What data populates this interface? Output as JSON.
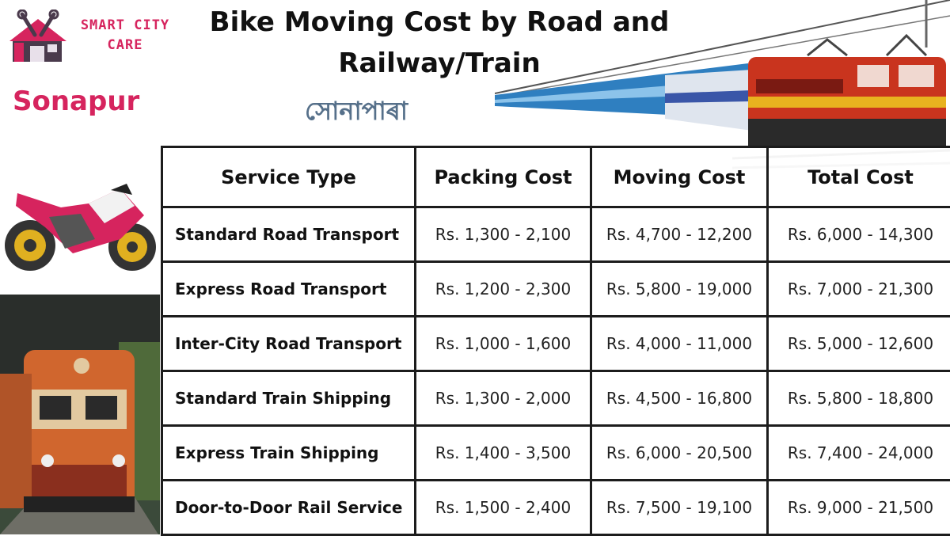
{
  "logo": {
    "line1": "SMART CITY",
    "line2": "CARE"
  },
  "title": {
    "line1": "Bike Moving Cost by Road and",
    "line2": "Railway/Train"
  },
  "location": {
    "english": "Sonapur",
    "assamese": "সোনাপাৰা"
  },
  "colors": {
    "brand": "#d6245e",
    "assamese_text": "#56708a",
    "border": "#1c1c1c"
  },
  "icons": [
    "house-tools-logo-icon",
    "motorcycle-icon",
    "electric-train-icon",
    "diesel-locomotive-icon"
  ],
  "table": {
    "headers": [
      "Service Type",
      "Packing Cost",
      "Moving Cost",
      "Total Cost"
    ],
    "rows": [
      [
        "Standard Road Transport",
        "Rs. 1,300 - 2,100",
        "Rs. 4,700 - 12,200",
        "Rs. 6,000 - 14,300"
      ],
      [
        "Express Road Transport",
        "Rs. 1,200 - 2,300",
        "Rs. 5,800 - 19,000",
        "Rs. 7,000 - 21,300"
      ],
      [
        "Inter-City Road Transport",
        "Rs. 1,000 - 1,600",
        "Rs. 4,000 - 11,000",
        "Rs. 5,000 - 12,600"
      ],
      [
        "Standard Train Shipping",
        "Rs. 1,300 - 2,000",
        "Rs. 4,500 - 16,800",
        "Rs. 5,800 - 18,800"
      ],
      [
        "Express Train Shipping",
        "Rs. 1,400 - 3,500",
        "Rs. 6,000 - 20,500",
        "Rs. 7,400 - 24,000"
      ],
      [
        "Door-to-Door Rail Service",
        "Rs. 1,500 - 2,400",
        "Rs. 7,500 - 19,100",
        "Rs. 9,000 - 21,500"
      ]
    ]
  }
}
